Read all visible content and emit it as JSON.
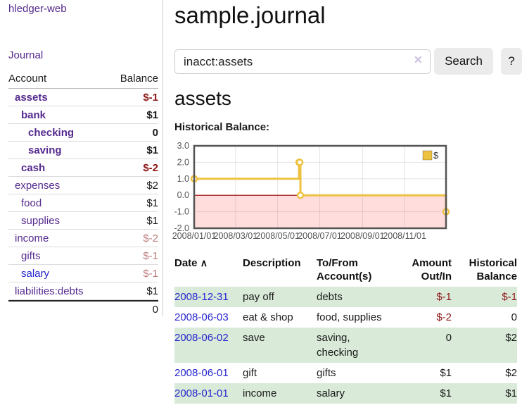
{
  "sidebar": {
    "brand": "hledger-web",
    "journal_link": "Journal",
    "accounts": {
      "headers": {
        "account": "Account",
        "balance": "Balance"
      },
      "rows": [
        {
          "name": "assets",
          "balance": "$-1"
        },
        {
          "name": "bank",
          "balance": "$1"
        },
        {
          "name": "checking",
          "balance": "0"
        },
        {
          "name": "saving",
          "balance": "$1"
        },
        {
          "name": "cash",
          "balance": "$-2"
        },
        {
          "name": "expenses",
          "balance": "$2"
        },
        {
          "name": "food",
          "balance": "$1"
        },
        {
          "name": "supplies",
          "balance": "$1"
        },
        {
          "name": "income",
          "balance": "$-2"
        },
        {
          "name": "gifts",
          "balance": "$-1"
        },
        {
          "name": "salary",
          "balance": "$-1"
        },
        {
          "name": "liabilities:debts",
          "balance": "$1"
        }
      ],
      "total": "0"
    }
  },
  "header": {
    "title": "sample.journal"
  },
  "search": {
    "value": "inacct:assets",
    "clear_icon": "✕",
    "button_label": "Search",
    "help_label": "?"
  },
  "account_page": {
    "heading": "assets",
    "chart_title": "Historical Balance:"
  },
  "chart_data": {
    "type": "line",
    "step": true,
    "title": "Historical Balance",
    "xlim": [
      "2008-01-01",
      "2008-12-31"
    ],
    "ylim": [
      -2,
      3
    ],
    "yticks": [
      3,
      2,
      1,
      0,
      -1,
      -2
    ],
    "xticks": [
      "2008/01/01",
      "2008/03/01",
      "2008/05/01",
      "2008/07/01",
      "2008/09/01",
      "2008/11/01"
    ],
    "series": [
      {
        "name": "$",
        "color": "#edc240",
        "points": [
          [
            "2008-01-01",
            1
          ],
          [
            "2008-06-01",
            2
          ],
          [
            "2008-06-02",
            2
          ],
          [
            "2008-06-03",
            0
          ],
          [
            "2008-12-31",
            -1
          ]
        ]
      }
    ],
    "legend_position": "top-right",
    "grid": true,
    "negative_region_color": "#ffdddd",
    "zero_line_color": "#990000",
    "border_color": "#545454"
  },
  "register_table": {
    "sort_indicator": "∧",
    "headers": {
      "date": "Date",
      "description": "Description",
      "tofrom": "To/From Account(s)",
      "amount": "Amount Out/In",
      "balance": "Historical Balance"
    },
    "rows": [
      {
        "date": "2008-12-31",
        "description": "pay off",
        "tofrom": "debts",
        "amount": "$-1",
        "balance": "$-1"
      },
      {
        "date": "2008-06-03",
        "description": "eat & shop",
        "tofrom": "food, supplies",
        "amount": "$-2",
        "balance": "0"
      },
      {
        "date": "2008-06-02",
        "description": "save",
        "tofrom": "saving, checking",
        "amount": "0",
        "balance": "$2"
      },
      {
        "date": "2008-06-01",
        "description": "gift",
        "tofrom": "gifts",
        "amount": "$1",
        "balance": "$2"
      },
      {
        "date": "2008-01-01",
        "description": "income",
        "tofrom": "salary",
        "amount": "$1",
        "balance": "$1"
      }
    ]
  },
  "colors": {
    "link_purple": "#552a8e",
    "link_blue": "#2626cf",
    "negative_bold": "#8c1616",
    "negative_soft": "#bd7b7b",
    "row_shade_green": "#d9ead9",
    "series_gold": "#edc240",
    "button_gray": "#ebebeb"
  }
}
